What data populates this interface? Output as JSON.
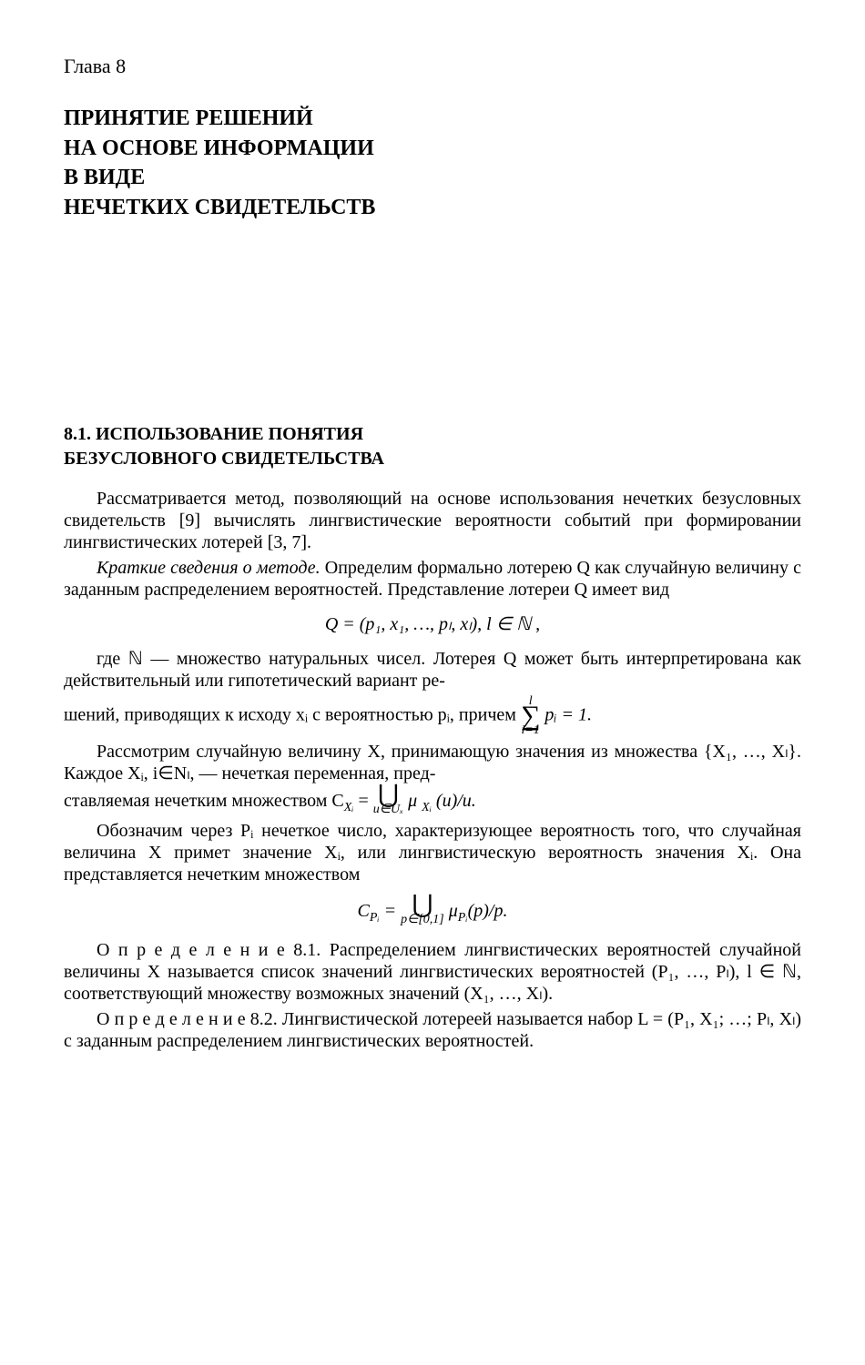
{
  "chapter": {
    "label": "Глава 8",
    "title_lines": [
      "ПРИНЯТИЕ РЕШЕНИЙ",
      "НА ОСНОВЕ ИНФОРМАЦИИ",
      "В ВИДЕ",
      "НЕЧЕТКИХ СВИДЕТЕЛЬСТВ"
    ]
  },
  "section": {
    "number": "8.1.",
    "title_lines": [
      "ИСПОЛЬЗОВАНИЕ ПОНЯТИЯ",
      "БЕЗУСЛОВНОГО СВИДЕТЕЛЬСТВА"
    ]
  },
  "paragraphs": {
    "p1": "Рассматривается метод, позволяющий на основе использования нечетких безусловных свидетельств [9] вычислять лингвистические вероятности событий при формировании лингвистических лотерей [3, 7].",
    "p2_pre": "Краткие сведения о методе.",
    "p2_body": " Определим формально лотерею Q как случайную величину с заданным распределением вероятностей. Представление лотереи Q имеет вид",
    "formula1": "Q = (p₁, x₁, …, pₗ, xₗ), l ∈ ℕ ,",
    "p3a": "где ℕ — множество натуральных чисел. Лотерея Q может быть интерпретирована как действительный или гипотетический вариант ре-",
    "p3b_pre": "шений, приводящих к исходу xᵢ с вероятностью pᵢ, причем ",
    "p3b_sum_top": "l",
    "p3b_sum_bot": "i=1",
    "p3b_post": " pᵢ = 1.",
    "p4a": "Рассмотрим случайную величину X, принимающую значения из множества {X₁, …, Xₗ}. Каждое Xᵢ, i∈Nₗ, — нечеткая переменная, пред-",
    "p4b_pre": "ставляемая нечетким множеством C",
    "p4b_xi": "Xᵢ",
    "p4b_eq": " = ",
    "p4b_under": "u∈Uₓ",
    "p4b_post": " μ ",
    "p4b_xi2": "Xᵢ",
    "p4b_tail": " (u)/u.",
    "p5": "Обозначим через Pᵢ нечеткое число, характеризующее вероятность того, что случайная величина X примет значение Xᵢ, или лингвистическую вероятность значения Xᵢ. Она представляется нечетким множеством",
    "formula2_lhs": "C",
    "formula2_sub": "Pᵢ",
    "formula2_eq": " = ",
    "formula2_under": "p∈[0,1]",
    "formula2_post": " μ",
    "formula2_sub2": "Pᵢ",
    "formula2_tail": "(p)/p.",
    "def81_label": "О п р е д е л е н и е 8.1.",
    "def81_body": " Распределением лингвистических вероятностей случайной величины X называется список значений лингвистических вероятностей (P₁, …, Pₗ), l ∈ ℕ, соответствующий множеству возможных значений (X₁, …, Xₗ).",
    "def82_label": "О п р е д е л е н и е 8.2.",
    "def82_body": " Лингвистической лотереей называется набор L = (P₁, X₁; …; Pₗ, Xₗ) с заданным распределением лингвистических вероятностей."
  }
}
